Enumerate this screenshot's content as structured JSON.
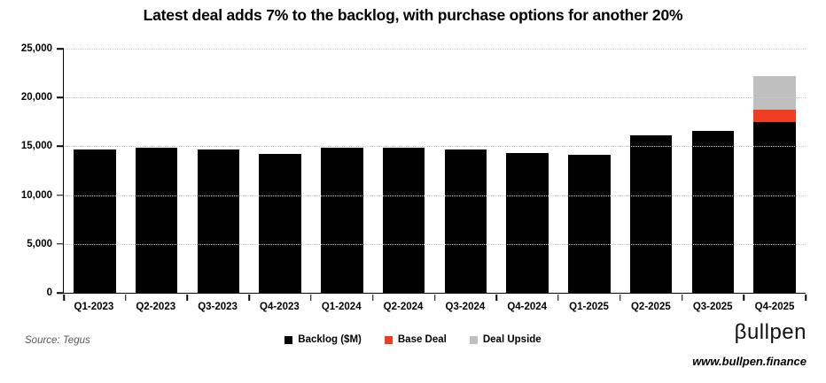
{
  "title": "Latest deal adds 7% to the backlog, with purchase options for another 20%",
  "source": "Source: Tegus",
  "branding": {
    "logo": "βullpen",
    "website": "www.bullpen.finance"
  },
  "legend": [
    {
      "label": "Backlog ($M)",
      "color": "#000000"
    },
    {
      "label": "Base Deal",
      "color": "#EE3D23"
    },
    {
      "label": "Deal Upside",
      "color": "#BFBFBF"
    }
  ],
  "chart_data": {
    "type": "bar",
    "stacked": true,
    "title": "Latest deal adds 7% to the backlog, with purchase options for another 20%",
    "xlabel": "",
    "ylabel": "",
    "categories": [
      "Q1-2023",
      "Q2-2023",
      "Q3-2023",
      "Q4-2023",
      "Q1-2024",
      "Q2-2024",
      "Q3-2024",
      "Q4-2024",
      "Q1-2025",
      "Q2-2025",
      "Q3-2025",
      "Q4-2025"
    ],
    "series": [
      {
        "name": "Backlog ($M)",
        "color": "#000000",
        "values": [
          14700,
          14900,
          14650,
          14200,
          14900,
          14900,
          14650,
          14350,
          14150,
          16100,
          16550,
          17500
        ]
      },
      {
        "name": "Base Deal",
        "color": "#EE3D23",
        "values": [
          0,
          0,
          0,
          0,
          0,
          0,
          0,
          0,
          0,
          0,
          0,
          1225
        ]
      },
      {
        "name": "Deal Upside",
        "color": "#BFBFBF",
        "values": [
          0,
          0,
          0,
          0,
          0,
          0,
          0,
          0,
          0,
          0,
          0,
          3500
        ]
      }
    ],
    "ylim": [
      0,
      25000
    ],
    "ytick_interval": 5000,
    "ytick_labels": [
      "0",
      "5,000",
      "10,000",
      "15,000",
      "20,000",
      "25,000"
    ],
    "grid": "horizontal-dotted",
    "legend_position": "bottom"
  }
}
